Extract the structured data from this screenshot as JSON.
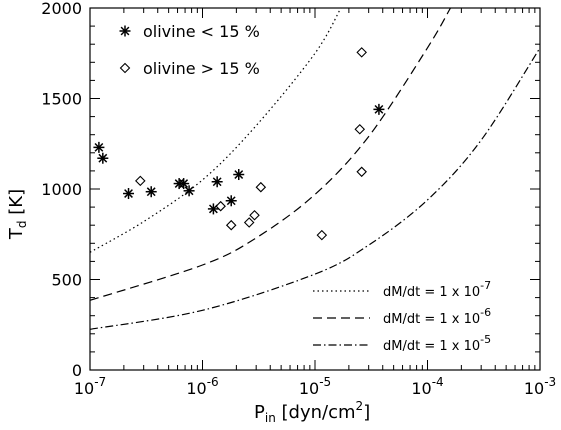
{
  "chart_data": {
    "type": "scatter",
    "title": "",
    "xlabel_main": "P",
    "xlabel_sub": "in",
    "xlabel_units": " [dyn/cm",
    "xlabel_sup": "2",
    "xlabel_close": "]",
    "ylabel_main": "T",
    "ylabel_sub": "d",
    "ylabel_units": " [K]",
    "x_scale": "log",
    "xlim": [
      1e-07,
      0.001
    ],
    "ylim": [
      0,
      2000
    ],
    "x_ticks": [
      {
        "value": 1e-07,
        "base": "10",
        "exp": "-7"
      },
      {
        "value": 1e-06,
        "base": "10",
        "exp": "-6"
      },
      {
        "value": 1e-05,
        "base": "10",
        "exp": "-5"
      },
      {
        "value": 0.0001,
        "base": "10",
        "exp": "-4"
      },
      {
        "value": 0.001,
        "base": "10",
        "exp": "-3"
      }
    ],
    "y_ticks": [
      {
        "value": 0,
        "label": "0"
      },
      {
        "value": 500,
        "label": "500"
      },
      {
        "value": 1000,
        "label": "1000"
      },
      {
        "value": 1500,
        "label": "1500"
      },
      {
        "value": 2000,
        "label": "2000"
      }
    ],
    "grid": false,
    "scatter_legend_placement": "top-left",
    "line_legend_placement": "bottom-right",
    "scatter_series": [
      {
        "name": "olivine < 15 %",
        "marker": "asterisk",
        "points": [
          {
            "x": 1.2e-07,
            "y": 1230
          },
          {
            "x": 1.3e-07,
            "y": 1170
          },
          {
            "x": 2.2e-07,
            "y": 975
          },
          {
            "x": 3.5e-07,
            "y": 985
          },
          {
            "x": 6.2e-07,
            "y": 1030
          },
          {
            "x": 6.8e-07,
            "y": 1030
          },
          {
            "x": 7.6e-07,
            "y": 990
          },
          {
            "x": 1.25e-06,
            "y": 890
          },
          {
            "x": 1.35e-06,
            "y": 1040
          },
          {
            "x": 1.8e-06,
            "y": 935
          },
          {
            "x": 2.1e-06,
            "y": 1080
          },
          {
            "x": 3.7e-05,
            "y": 1440
          }
        ]
      },
      {
        "name": "olivine > 15 %",
        "marker": "diamond",
        "points": [
          {
            "x": 2.8e-07,
            "y": 1045
          },
          {
            "x": 1.45e-06,
            "y": 905
          },
          {
            "x": 1.8e-06,
            "y": 800
          },
          {
            "x": 2.6e-06,
            "y": 815
          },
          {
            "x": 2.9e-06,
            "y": 855
          },
          {
            "x": 3.3e-06,
            "y": 1010
          },
          {
            "x": 1.15e-05,
            "y": 745
          },
          {
            "x": 2.5e-05,
            "y": 1330
          },
          {
            "x": 2.6e-05,
            "y": 1755
          },
          {
            "x": 2.6e-05,
            "y": 1095
          }
        ]
      }
    ],
    "line_series": [
      {
        "name": "dM/dt = 1 x 10",
        "exp": "-7",
        "style": "dotted",
        "points": [
          [
            1e-07,
            650
          ],
          [
            3e-07,
            820
          ],
          [
            1e-06,
            1050
          ],
          [
            3e-06,
            1350
          ],
          [
            1e-05,
            1750
          ],
          [
            1.7e-05,
            2000
          ]
        ]
      },
      {
        "name": "dM/dt = 1 x 10",
        "exp": "-6",
        "style": "dashed",
        "points": [
          [
            1e-07,
            385
          ],
          [
            1e-06,
            580
          ],
          [
            3e-06,
            730
          ],
          [
            1e-05,
            970
          ],
          [
            3e-05,
            1290
          ],
          [
            0.0001,
            1780
          ],
          [
            0.00016,
            2000
          ]
        ]
      },
      {
        "name": "dM/dt = 1 x 10",
        "exp": "-5",
        "style": "dash-dot",
        "points": [
          [
            1e-07,
            225
          ],
          [
            1e-06,
            330
          ],
          [
            1e-05,
            530
          ],
          [
            3e-05,
            690
          ],
          [
            0.0001,
            940
          ],
          [
            0.0003,
            1270
          ],
          [
            0.001,
            1780
          ]
        ]
      }
    ]
  }
}
